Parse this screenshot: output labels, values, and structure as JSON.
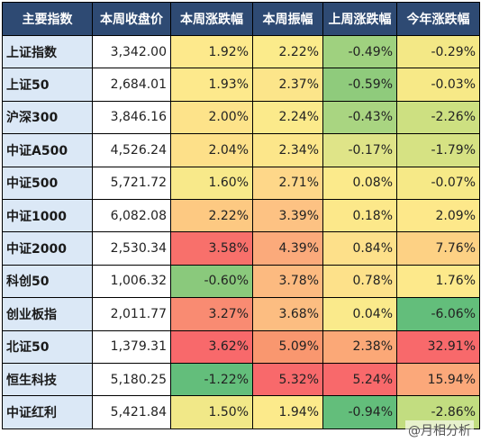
{
  "chart_data": {
    "type": "table",
    "columns": [
      "主要指数",
      "本周收盘价",
      "本周涨跌幅",
      "本周振幅",
      "上周涨跌幅",
      "今年涨跌幅"
    ],
    "rows": [
      {
        "name": "上证指数",
        "close": "3,342.00",
        "wk": "1.92%",
        "amp": "2.22%",
        "lastwk": "-0.49%",
        "ytd": "-0.29%",
        "c_wk": "#fde98c",
        "c_amp": "#fbeb8b",
        "c_lastwk": "#9fd17f",
        "c_ytd": "#f3e886"
      },
      {
        "name": "上证50",
        "close": "2,684.01",
        "wk": "1.93%",
        "amp": "2.37%",
        "lastwk": "-0.59%",
        "ytd": "-0.03%",
        "c_wk": "#fde98c",
        "c_amp": "#fce58a",
        "c_lastwk": "#8fcb7c",
        "c_ytd": "#f7e987"
      },
      {
        "name": "沪深300",
        "close": "3,846.16",
        "wk": "2.00%",
        "amp": "2.24%",
        "lastwk": "-0.43%",
        "ytd": "-2.26%",
        "c_wk": "#fde38a",
        "c_amp": "#fbea8b",
        "c_lastwk": "#a9d581",
        "c_ytd": "#cde081"
      },
      {
        "name": "中证A500",
        "close": "4,526.24",
        "wk": "2.04%",
        "amp": "2.34%",
        "lastwk": "-0.17%",
        "ytd": "-1.79%",
        "c_wk": "#fde089",
        "c_amp": "#fce68a",
        "c_lastwk": "#dfe488",
        "c_ytd": "#d6e283"
      },
      {
        "name": "中证500",
        "close": "5,721.72",
        "wk": "1.60%",
        "amp": "2.71%",
        "lastwk": "0.08%",
        "ytd": "-0.07%",
        "c_wk": "#f8e98a",
        "c_amp": "#fed789",
        "c_lastwk": "#fbea8b",
        "c_ytd": "#f6e987"
      },
      {
        "name": "中证1000",
        "close": "6,082.08",
        "wk": "2.22%",
        "amp": "3.39%",
        "lastwk": "0.18%",
        "ytd": "2.09%",
        "c_wk": "#fdc982",
        "c_amp": "#fdc283",
        "c_lastwk": "#fce88a",
        "c_ytd": "#fde88a"
      },
      {
        "name": "中证2000",
        "close": "2,530.34",
        "wk": "3.58%",
        "amp": "4.39%",
        "lastwk": "0.84%",
        "ytd": "7.76%",
        "c_wk": "#f8706b",
        "c_amp": "#fbaa7b",
        "c_lastwk": "#fde08a",
        "c_ytd": "#fdd184"
      },
      {
        "name": "科创50",
        "close": "1,006.32",
        "wk": "-0.60%",
        "amp": "3.78%",
        "lastwk": "0.78%",
        "ytd": "1.76%",
        "c_wk": "#8ac97c",
        "c_amp": "#fcba80",
        "c_lastwk": "#fde18a",
        "c_ytd": "#fde98b"
      },
      {
        "name": "创业板指",
        "close": "2,011.77",
        "wk": "3.27%",
        "amp": "3.68%",
        "lastwk": "0.04%",
        "ytd": "-6.06%",
        "c_wk": "#f98b72",
        "c_amp": "#fcbd81",
        "c_lastwk": "#faea8b",
        "c_ytd": "#63be7b"
      },
      {
        "name": "北证50",
        "close": "1,379.31",
        "wk": "3.62%",
        "amp": "5.09%",
        "lastwk": "2.38%",
        "ytd": "32.91%",
        "c_wk": "#f8696b",
        "c_amp": "#f9976f",
        "c_lastwk": "#fba877",
        "c_ytd": "#f8696b"
      },
      {
        "name": "恒生科技",
        "close": "5,180.25",
        "wk": "-1.22%",
        "amp": "5.32%",
        "lastwk": "5.24%",
        "ytd": "15.94%",
        "c_wk": "#63be7b",
        "c_amp": "#f8696b",
        "c_lastwk": "#f8696b",
        "c_ytd": "#fba87a"
      },
      {
        "name": "中证红利",
        "close": "5,421.84",
        "wk": "1.50%",
        "amp": "1.94%",
        "lastwk": "-0.94%",
        "ytd": "-2.86%",
        "c_wk": "#f1e888",
        "c_amp": "#fcea8b",
        "c_lastwk": "#63be7b",
        "c_ytd": "#c2dd80"
      }
    ]
  },
  "watermark": "@月相分析"
}
